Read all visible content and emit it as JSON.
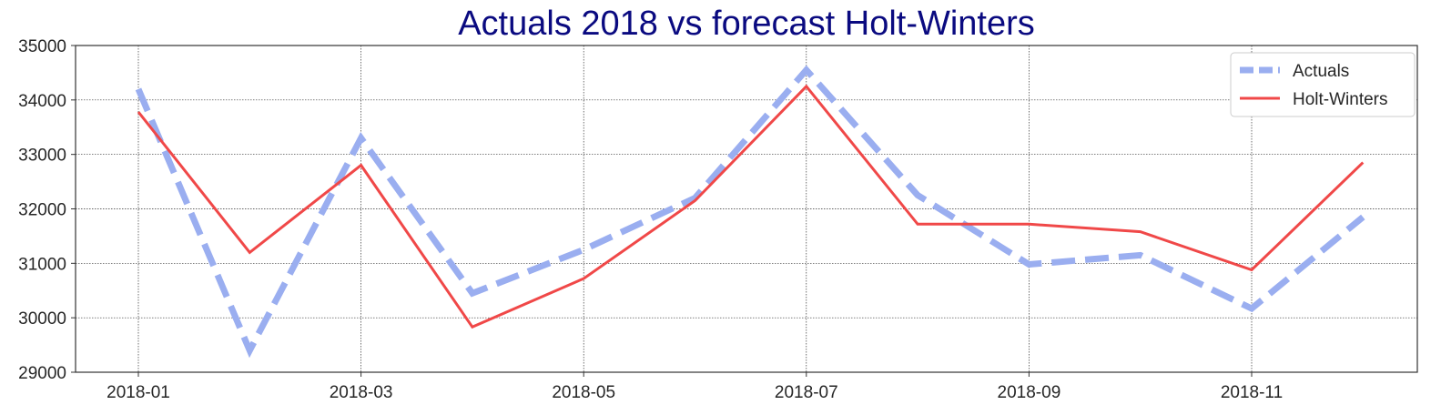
{
  "chart_data": {
    "type": "line",
    "title": "Actuals 2018 vs forecast Holt-Winters",
    "xlabel": "",
    "ylabel": "",
    "x": [
      "2018-01",
      "2018-02",
      "2018-03",
      "2018-04",
      "2018-05",
      "2018-06",
      "2018-07",
      "2018-08",
      "2018-09",
      "2018-10",
      "2018-11",
      "2018-12"
    ],
    "x_tick_labels": [
      "2018-01",
      "2018-03",
      "2018-05",
      "2018-07",
      "2018-09",
      "2018-11"
    ],
    "ylim": [
      29000,
      35000
    ],
    "y_ticks": [
      29000,
      30000,
      31000,
      32000,
      33000,
      34000,
      35000
    ],
    "grid": true,
    "legend_position": "top-right",
    "series": [
      {
        "name": "Actuals",
        "style": "dashed",
        "color": "#9aaef0",
        "values": [
          34200,
          29400,
          33300,
          30450,
          31250,
          32200,
          34550,
          32250,
          30980,
          31150,
          30170,
          31850
        ]
      },
      {
        "name": "Holt-Winters",
        "style": "solid",
        "color": "#f04848",
        "values": [
          33780,
          31200,
          32800,
          29830,
          30720,
          32150,
          34250,
          31720,
          31720,
          31580,
          30880,
          32850
        ]
      }
    ],
    "title_color": "#0a0a80"
  }
}
